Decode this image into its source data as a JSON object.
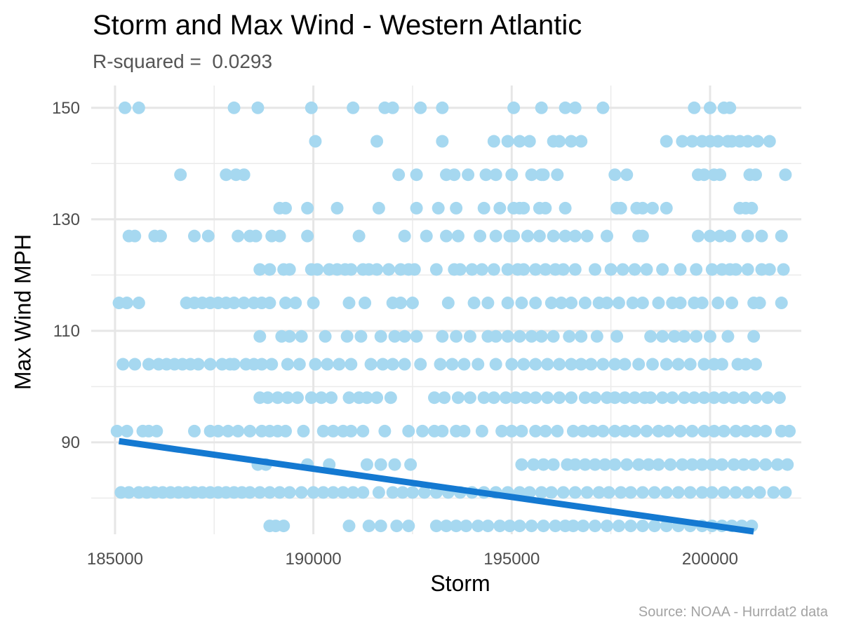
{
  "chart_data": {
    "type": "scatter",
    "title": "Storm and Max Wind - Western Atlantic",
    "subtitle": "R-squared =  0.0293",
    "caption": "Source: NOAA - Hurrdat2 data",
    "xlabel": "Storm",
    "ylabel": "Max Wind MPH",
    "xlim": [
      184400,
      202300
    ],
    "ylim": [
      73.5,
      154
    ],
    "x_ticks": [
      185000,
      190000,
      195000,
      200000
    ],
    "x_tick_labels": [
      "185000",
      "190000",
      "195000",
      "200000"
    ],
    "y_ticks": [
      90,
      110,
      130,
      150
    ],
    "y_tick_labels": [
      "90",
      "110",
      "130",
      "150"
    ],
    "grid": true,
    "point_color": "#a6d8f0",
    "line_color": "#1479d1",
    "trend_line": {
      "x": [
        185100,
        201100
      ],
      "y": [
        90.2,
        74.0
      ]
    },
    "levels": [
      {
        "y": 150,
        "x": [
          185250,
          185600,
          188000,
          188600,
          189950,
          191000,
          191800,
          192000,
          192700,
          193250,
          195050,
          195750,
          196350,
          196600,
          197300,
          199600,
          200000,
          200350,
          200500
        ]
      },
      {
        "y": 144,
        "x": [
          190050,
          191600,
          193250,
          194550,
          194900,
          195200,
          195450,
          196050,
          196200,
          196500,
          196750,
          198900,
          199300,
          199550,
          199800,
          200000,
          200200,
          200450,
          200550,
          200750,
          200950,
          201200,
          201500
        ]
      },
      {
        "y": 138,
        "x": [
          186650,
          187800,
          188050,
          188250,
          192150,
          192600,
          193350,
          193550,
          193900,
          194350,
          194600,
          195000,
          195500,
          195750,
          195800,
          196150,
          197600,
          197900,
          199700,
          199850,
          200100,
          200250,
          201000,
          201150,
          201900
        ]
      },
      {
        "y": 132,
        "x": [
          189150,
          189300,
          189850,
          190600,
          191650,
          192600,
          193150,
          193600,
          194300,
          194700,
          195050,
          195200,
          195300,
          195700,
          195850,
          196350,
          197650,
          197750,
          198150,
          198300,
          198550,
          198900,
          200750,
          200900,
          201050
        ]
      },
      {
        "y": 127,
        "x": [
          185350,
          185500,
          186000,
          186150,
          187000,
          187350,
          188100,
          188400,
          188550,
          188950,
          189150,
          189850,
          191150,
          192300,
          192850,
          193350,
          193650,
          194200,
          194600,
          194950,
          195050,
          195400,
          195700,
          196050,
          196350,
          196600,
          196900,
          197400,
          198200,
          198300,
          199700,
          200000,
          200250,
          200500,
          200950,
          201300,
          201800
        ]
      },
      {
        "y": 121,
        "x": [
          188650,
          188900,
          189250,
          189400,
          189950,
          190100,
          190400,
          190600,
          190800,
          190950,
          191250,
          191400,
          191600,
          191900,
          192200,
          192400,
          192550,
          193100,
          193550,
          193700,
          194000,
          194250,
          194550,
          194900,
          195150,
          195300,
          195600,
          195850,
          196100,
          196300,
          196600,
          197100,
          197500,
          197800,
          198100,
          198400,
          198800,
          199250,
          199650,
          200050,
          200300,
          200500,
          200650,
          200950,
          201300,
          201500,
          201850
        ]
      },
      {
        "y": 115,
        "x": [
          185100,
          185300,
          185600,
          186800,
          187000,
          187200,
          187400,
          187600,
          187800,
          188000,
          188250,
          188500,
          188700,
          188900,
          189300,
          189550,
          190000,
          190900,
          191300,
          192000,
          192200,
          192500,
          193400,
          194050,
          194400,
          194900,
          195250,
          195600,
          196000,
          196250,
          196500,
          196850,
          197200,
          197400,
          197700,
          198050,
          198300,
          198700,
          199050,
          199250,
          199600,
          199800,
          200200,
          200550,
          201100,
          201250,
          201800
        ]
      },
      {
        "y": 109,
        "x": [
          188650,
          189200,
          189400,
          189700,
          190300,
          190850,
          191200,
          191700,
          192050,
          192300,
          192600,
          193250,
          193600,
          193950,
          194400,
          194600,
          194900,
          195200,
          195500,
          195750,
          196050,
          196450,
          196750,
          197150,
          197650,
          198500,
          198800,
          199100,
          199350,
          199650,
          200000,
          200450,
          201100
        ]
      },
      {
        "y": 104,
        "x": [
          185200,
          185500,
          185850,
          186100,
          186300,
          186500,
          186700,
          186900,
          187100,
          187400,
          187700,
          187900,
          188000,
          188300,
          188500,
          188700,
          188950,
          189350,
          189650,
          190050,
          190350,
          190650,
          190950,
          191450,
          191750,
          192000,
          192300,
          192700,
          193200,
          193500,
          193800,
          194150,
          194600,
          195000,
          195300,
          195600,
          195900,
          196200,
          196500,
          196750,
          197000,
          197300,
          197600,
          197850,
          198200,
          198550,
          198900,
          199200,
          199500,
          199850,
          200100,
          200300,
          200700,
          200900,
          201150
        ]
      },
      {
        "y": 98,
        "x": [
          188650,
          188850,
          189100,
          189350,
          189600,
          189950,
          190200,
          190450,
          190900,
          191150,
          191350,
          191600,
          191950,
          193050,
          193300,
          193650,
          193950,
          194300,
          194550,
          194850,
          195100,
          195350,
          195600,
          195900,
          196200,
          196500,
          196850,
          197100,
          197400,
          197600,
          197850,
          198100,
          198350,
          198500,
          198800,
          199050,
          199350,
          199600,
          199850,
          200100,
          200350,
          200600,
          200850,
          201150,
          201450,
          201750
        ]
      },
      {
        "y": 92,
        "x": [
          185050,
          185300,
          185700,
          185850,
          186050,
          187000,
          187400,
          187600,
          187850,
          188100,
          188400,
          188700,
          188900,
          189100,
          189300,
          189750,
          190250,
          190500,
          190750,
          190950,
          191250,
          191800,
          192400,
          192750,
          193050,
          193250,
          193600,
          193800,
          194250,
          194750,
          195000,
          195250,
          195600,
          195850,
          196150,
          196550,
          196800,
          197050,
          197300,
          197600,
          197850,
          198100,
          198400,
          198700,
          198950,
          199250,
          199550,
          199850,
          200100,
          200350,
          200650,
          200900,
          201150,
          201400,
          201800,
          202000
        ]
      },
      {
        "y": 86,
        "x": [
          188600,
          188800,
          189850,
          190400,
          191350,
          191700,
          192050,
          192450,
          195250,
          195550,
          195800,
          196050,
          196400,
          196600,
          196850,
          197100,
          197350,
          197600,
          197900,
          198200,
          198450,
          198700,
          199000,
          199300,
          199550,
          199800,
          200050,
          200300,
          200600,
          200850,
          201100,
          201400,
          201700,
          201950
        ]
      },
      {
        "y": 81,
        "x": [
          185150,
          185350,
          185600,
          185800,
          186000,
          186200,
          186400,
          186600,
          186800,
          187000,
          187200,
          187400,
          187600,
          187800,
          188000,
          188200,
          188400,
          188650,
          188900,
          189150,
          189400,
          189700,
          190000,
          190250,
          190500,
          190750,
          191000,
          191250,
          191650,
          192000,
          192250,
          192500,
          192800,
          193100,
          193400,
          193700,
          194000,
          194300,
          194600,
          194900,
          195200,
          195450,
          195750,
          196000,
          196300,
          196600,
          196900,
          197200,
          197450,
          197750,
          198000,
          198300,
          198600,
          198900,
          199200,
          199500,
          199800,
          200050,
          200350,
          200650,
          200950,
          201250,
          201600,
          201900
        ]
      },
      {
        "y": 75,
        "x": [
          188900,
          189050,
          189250,
          190900,
          191400,
          191700,
          192100,
          192400,
          193100,
          193350,
          193600,
          193850,
          194150,
          194400,
          194700,
          194950,
          195200,
          195500,
          195800,
          196100,
          196350,
          196550,
          196800,
          197100,
          197400,
          197700,
          198000,
          198300,
          198600,
          198900,
          199200,
          199500,
          199800,
          200050,
          200300,
          200550,
          200800,
          201050
        ]
      }
    ]
  }
}
